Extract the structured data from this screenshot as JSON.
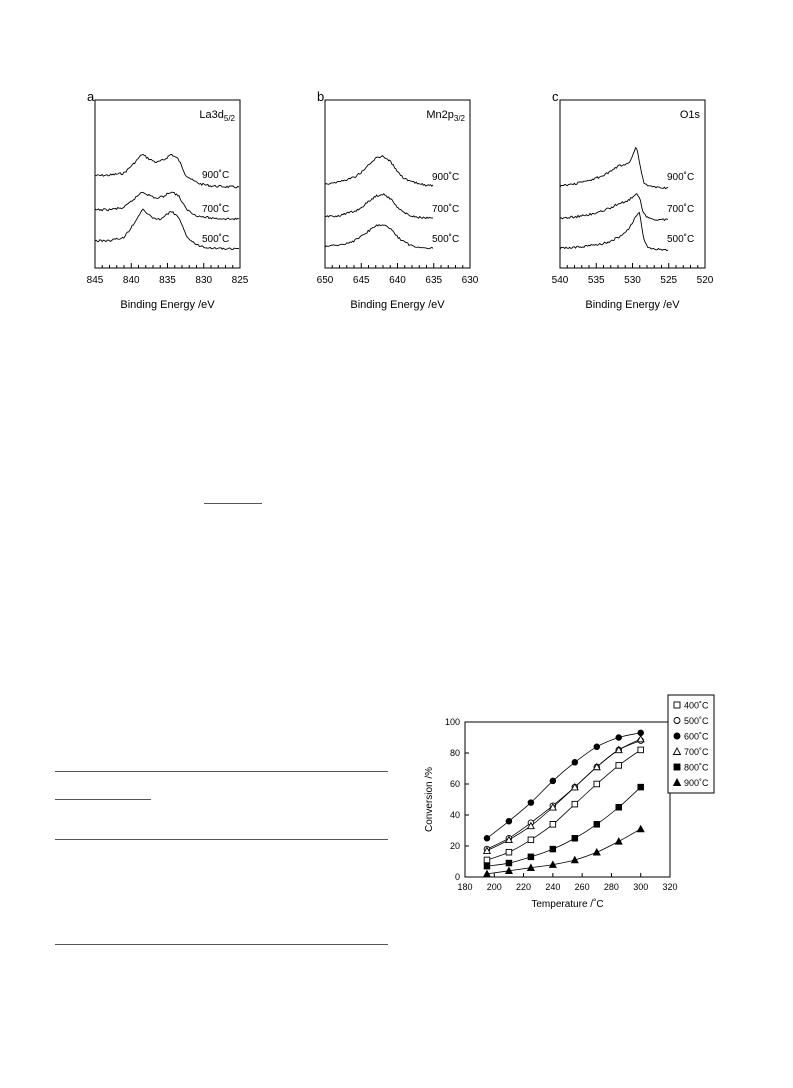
{
  "chart_data": [
    {
      "type": "line",
      "panel_letter": "a",
      "element_label": "La3d",
      "element_sub": "5/2",
      "xlabel": "Binding Energy  /eV",
      "xlim": [
        845,
        825
      ],
      "xticks": [
        "845",
        "840",
        "835",
        "830",
        "825"
      ],
      "x_reversed": true,
      "series": [
        {
          "name": "900˚C",
          "x": [
            845,
            843,
            841,
            839.5,
            838.5,
            837.5,
            836.5,
            835.5,
            834.5,
            833.5,
            832.5,
            831.5,
            830.5,
            829,
            827,
            825
          ],
          "y": [
            0.3,
            0.31,
            0.36,
            0.62,
            0.82,
            0.7,
            0.62,
            0.68,
            0.82,
            0.7,
            0.32,
            0.18,
            0.1,
            0.05,
            0.03,
            0.02
          ]
        },
        {
          "name": "700˚C",
          "x": [
            845,
            843,
            841,
            839.5,
            838.5,
            837.5,
            836.5,
            835.5,
            834.5,
            833.5,
            832.5,
            831.5,
            830.5,
            829,
            827,
            825
          ],
          "y": [
            0.26,
            0.27,
            0.32,
            0.56,
            0.74,
            0.64,
            0.56,
            0.62,
            0.74,
            0.64,
            0.3,
            0.16,
            0.09,
            0.05,
            0.03,
            0.02
          ]
        },
        {
          "name": "500˚C",
          "x": [
            845,
            843,
            841,
            839.5,
            838.5,
            837.5,
            836.5,
            835.5,
            834.5,
            833.5,
            832.5,
            831.5,
            830.5,
            829,
            827,
            825
          ],
          "y": [
            0.22,
            0.23,
            0.3,
            0.68,
            0.98,
            0.85,
            0.72,
            0.8,
            0.94,
            0.8,
            0.38,
            0.18,
            0.1,
            0.05,
            0.03,
            0.02
          ]
        }
      ]
    },
    {
      "type": "line",
      "panel_letter": "b",
      "element_label": "Mn2p",
      "element_sub": "3/2",
      "xlabel": "Binding Energy  /eV",
      "xlim": [
        650,
        630
      ],
      "xticks": [
        "650",
        "645",
        "640",
        "635",
        "630"
      ],
      "x_reversed": true,
      "series": [
        {
          "name": "900˚C",
          "x": [
            650,
            648,
            646,
            645,
            644,
            643,
            642,
            641,
            640,
            639,
            638,
            637,
            636,
            635
          ],
          "y": [
            0.1,
            0.15,
            0.26,
            0.38,
            0.55,
            0.72,
            0.78,
            0.65,
            0.4,
            0.22,
            0.14,
            0.1,
            0.07,
            0.05
          ]
        },
        {
          "name": "700˚C",
          "x": [
            650,
            648,
            646,
            645,
            644,
            643,
            642,
            641,
            640,
            639,
            638,
            637,
            636,
            635
          ],
          "y": [
            0.08,
            0.12,
            0.22,
            0.32,
            0.48,
            0.62,
            0.68,
            0.56,
            0.34,
            0.18,
            0.1,
            0.07,
            0.05,
            0.04
          ]
        },
        {
          "name": "500˚C",
          "x": [
            650,
            648,
            646,
            645,
            644,
            643,
            642,
            641,
            640,
            639,
            638,
            637,
            636,
            635
          ],
          "y": [
            0.08,
            0.12,
            0.22,
            0.32,
            0.46,
            0.58,
            0.62,
            0.52,
            0.32,
            0.18,
            0.1,
            0.07,
            0.05,
            0.04
          ]
        }
      ]
    },
    {
      "type": "line",
      "panel_letter": "c",
      "element_label": "O1s",
      "element_sub": "",
      "xlabel": "Binding Energy  /eV",
      "xlim": [
        540,
        520
      ],
      "xticks": [
        "540",
        "535",
        "530",
        "525",
        "520"
      ],
      "x_reversed": true,
      "series": [
        {
          "name": "900˚C",
          "x": [
            540,
            538,
            536,
            534,
            533,
            532,
            531,
            530.5,
            530,
            529.5,
            529,
            528.5,
            528,
            527,
            526,
            525
          ],
          "y": [
            0.05,
            0.1,
            0.18,
            0.3,
            0.4,
            0.52,
            0.58,
            0.62,
            0.78,
            1.0,
            0.62,
            0.15,
            0.05,
            0.02,
            0.01,
            0.0
          ]
        },
        {
          "name": "700˚C",
          "x": [
            540,
            538,
            536,
            534,
            533,
            532,
            531,
            530.5,
            530,
            529.5,
            529,
            528.5,
            528,
            527,
            526,
            525
          ],
          "y": [
            0.04,
            0.08,
            0.14,
            0.24,
            0.32,
            0.42,
            0.48,
            0.52,
            0.6,
            0.7,
            0.58,
            0.18,
            0.06,
            0.02,
            0.01,
            0.0
          ]
        },
        {
          "name": "500˚C",
          "x": [
            540,
            538,
            536,
            534,
            533,
            532,
            531,
            530.5,
            530,
            529.5,
            529,
            528.5,
            528,
            527,
            526,
            525
          ],
          "y": [
            0.04,
            0.06,
            0.1,
            0.16,
            0.22,
            0.3,
            0.42,
            0.52,
            0.68,
            0.82,
            0.92,
            0.3,
            0.08,
            0.02,
            0.01,
            0.0
          ]
        }
      ]
    },
    {
      "type": "scatter",
      "xlabel": "Temperature  /˚C",
      "ylabel": "Conversion  /%",
      "xlim": [
        180,
        320
      ],
      "ylim": [
        0,
        100
      ],
      "xticks": [
        180,
        200,
        220,
        240,
        260,
        280,
        300,
        320
      ],
      "yticks": [
        0,
        20,
        40,
        60,
        80,
        100
      ],
      "legend_position": "top-right",
      "series": [
        {
          "name": "400˚C",
          "marker": "open-square",
          "x": [
            195,
            210,
            225,
            240,
            255,
            270,
            285,
            300
          ],
          "y": [
            11,
            16,
            24,
            34,
            47,
            60,
            72,
            82
          ]
        },
        {
          "name": "500˚C",
          "marker": "open-circle",
          "x": [
            195,
            210,
            225,
            240,
            255,
            270,
            285,
            300
          ],
          "y": [
            18,
            25,
            35,
            46,
            58,
            71,
            82,
            88
          ]
        },
        {
          "name": "600˚C",
          "marker": "filled-circle",
          "x": [
            195,
            210,
            225,
            240,
            255,
            270,
            285,
            300
          ],
          "y": [
            25,
            36,
            48,
            62,
            74,
            84,
            90,
            93
          ]
        },
        {
          "name": "700˚C",
          "marker": "open-triangle",
          "x": [
            195,
            210,
            225,
            240,
            255,
            270,
            285,
            300
          ],
          "y": [
            17,
            24,
            33,
            45,
            58,
            71,
            82,
            89
          ]
        },
        {
          "name": "800˚C",
          "marker": "filled-square",
          "x": [
            195,
            210,
            225,
            240,
            255,
            270,
            285,
            300
          ],
          "y": [
            7,
            9,
            13,
            18,
            25,
            34,
            45,
            58
          ]
        },
        {
          "name": "900˚C",
          "marker": "filled-triangle",
          "x": [
            195,
            210,
            225,
            240,
            255,
            270,
            285,
            300
          ],
          "y": [
            2,
            4,
            6,
            8,
            11,
            16,
            23,
            31
          ]
        }
      ]
    }
  ]
}
